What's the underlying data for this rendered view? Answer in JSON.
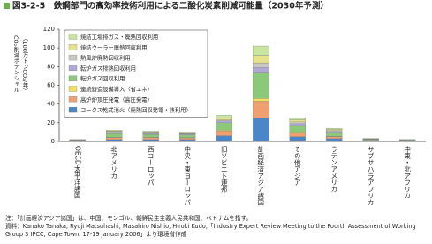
{
  "chart_data": {
    "type": "stacked_bar",
    "title": "図3-2-5　鉄鋼部門の高効率技術利用による二酸化炭素削減可能量（2030年予測）",
    "y_label": [
      "CO₂削減ポテンシャル",
      "（100万トンCO₂/年）"
    ],
    "categories": [
      "OECD太平洋諸国",
      "北アメリカ",
      "西ヨーロッパ",
      "中央・東ヨーロッパ",
      "旧ソビエト連邦",
      "計画経済アジア諸国",
      "その他アジア",
      "ラテンアメリカ",
      "サブサハラアフリカ",
      "中東・北アフリカ"
    ],
    "series": [
      {
        "name": "コークス乾式消火（廃熱回収発電・熱利用）",
        "color": "#4a86c8",
        "values": [
          0.5,
          2,
          2,
          2,
          6,
          25,
          5,
          3,
          0.5,
          0.5
        ]
      },
      {
        "name": "高炉炉頂圧発電（高圧発電）",
        "color": "#f0a070",
        "values": [
          0.5,
          2,
          2,
          1.5,
          5,
          18,
          4,
          2,
          0.5,
          0.3
        ]
      },
      {
        "name": "連続鋳造設備導入（省エネ）",
        "color": "#f2e060",
        "values": [
          0,
          0.5,
          0.5,
          0.5,
          1,
          3,
          1,
          0.5,
          0.2,
          0.1
        ]
      },
      {
        "name": "転炉ガス回収利用",
        "color": "#8cc87a",
        "values": [
          0.5,
          4,
          3,
          3,
          8,
          27,
          7,
          4,
          1,
          0.6
        ]
      },
      {
        "name": "転炉ガス排熱回収利用",
        "color": "#b0a8d8",
        "values": [
          0.2,
          1,
          1,
          1,
          2,
          6,
          2,
          1,
          0.3,
          0.2
        ]
      },
      {
        "name": "熱風炉廃熱回収利用",
        "color": "#c8c8c0",
        "values": [
          0.1,
          1,
          1,
          0.5,
          1,
          5,
          2,
          1,
          0.2,
          0.1
        ]
      },
      {
        "name": "焼結クーラー廃熱回収利用",
        "color": "#e6e28c",
        "values": [
          0.1,
          0.5,
          0.5,
          0.5,
          2,
          8,
          2,
          1,
          0.1,
          0.1
        ]
      },
      {
        "name": "焼結工場排ガス・廃熱回収利用",
        "color": "#c8e6a0",
        "values": [
          0.1,
          1,
          1,
          1,
          3,
          10,
          2,
          1.5,
          0.2,
          0.1
        ]
      }
    ],
    "ylim": [
      0,
      120
    ],
    "yticks": [
      0,
      20,
      40,
      60,
      80,
      100,
      120
    ],
    "grid": false,
    "notes": [
      "注：「計画経済アジア諸国」は、中国、モンゴル、朝鮮民主主義人民共和国、ベトナムを指す。",
      "資料：Kanako Tanaka, Ryuji Matsuhashi, Masahiro Nishio, Hiroki Kudo,「Industry Expert Review Meeting to the Fourth Assessment of Working Group 3 IPCC, Cape Town, 17-19 January 2006」より環境省作成"
    ]
  }
}
